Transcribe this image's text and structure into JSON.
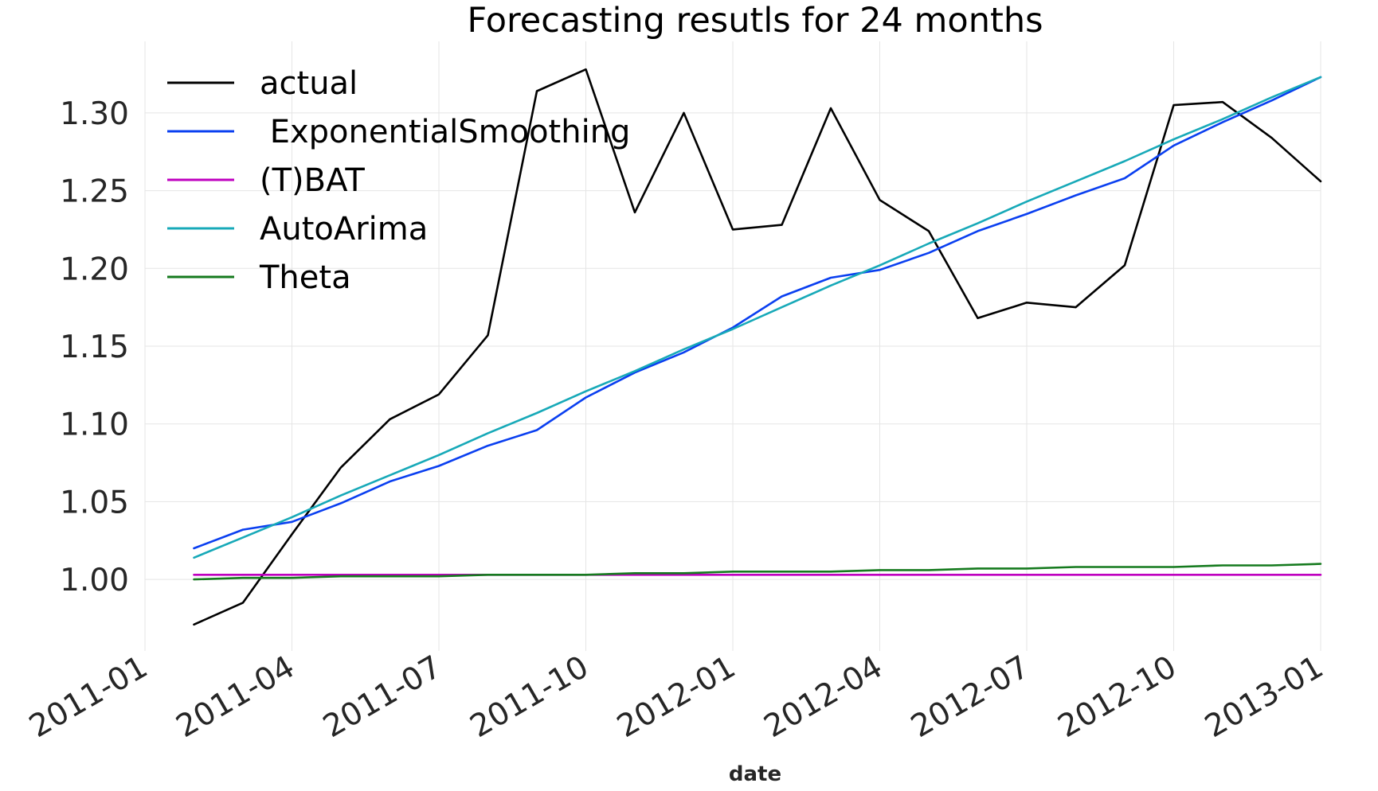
{
  "chart_data": {
    "type": "line",
    "title": "Forecasting resutls for 24 months",
    "xlabel": "date",
    "ylabel": "",
    "x_ticks": [
      "2011-01",
      "2011-04",
      "2011-07",
      "2011-10",
      "2012-01",
      "2012-04",
      "2012-07",
      "2012-10",
      "2013-01"
    ],
    "y_ticks": [
      "1.00",
      "1.05",
      "1.10",
      "1.15",
      "1.20",
      "1.25",
      "1.30"
    ],
    "xlim": [
      "2011-01",
      "2013-01"
    ],
    "ylim": [
      0.954,
      1.346
    ],
    "grid": true,
    "legend_position": "top-left",
    "x": [
      "2011-02",
      "2011-03",
      "2011-04",
      "2011-05",
      "2011-06",
      "2011-07",
      "2011-08",
      "2011-09",
      "2011-10",
      "2011-11",
      "2011-12",
      "2012-01",
      "2012-02",
      "2012-03",
      "2012-04",
      "2012-05",
      "2012-06",
      "2012-07",
      "2012-08",
      "2012-09",
      "2012-10",
      "2012-11",
      "2012-12",
      "2013-01"
    ],
    "series": [
      {
        "name": "actual",
        "color": "#000000",
        "values": [
          0.971,
          0.985,
          1.029,
          1.072,
          1.103,
          1.119,
          1.157,
          1.314,
          1.328,
          1.236,
          1.3,
          1.225,
          1.228,
          1.303,
          1.244,
          1.224,
          1.168,
          1.178,
          1.175,
          1.202,
          1.305,
          1.307,
          1.284,
          1.256
        ]
      },
      {
        "name": " ExponentialSmoothing",
        "color": "#0a3ff0",
        "values": [
          1.02,
          1.032,
          1.037,
          1.049,
          1.063,
          1.073,
          1.086,
          1.096,
          1.117,
          1.133,
          1.146,
          1.162,
          1.182,
          1.194,
          1.199,
          1.21,
          1.224,
          1.235,
          1.247,
          1.258,
          1.279,
          1.294,
          1.308,
          1.323
        ]
      },
      {
        "name": "(T)BAT",
        "color": "#bf00bf",
        "values": [
          1.003,
          1.003,
          1.003,
          1.003,
          1.003,
          1.003,
          1.003,
          1.003,
          1.003,
          1.003,
          1.003,
          1.003,
          1.003,
          1.003,
          1.003,
          1.003,
          1.003,
          1.003,
          1.003,
          1.003,
          1.003,
          1.003,
          1.003,
          1.003
        ]
      },
      {
        "name": "AutoArima",
        "color": "#17a9b8",
        "values": [
          1.014,
          1.027,
          1.04,
          1.054,
          1.067,
          1.08,
          1.094,
          1.107,
          1.121,
          1.134,
          1.148,
          1.161,
          1.175,
          1.189,
          1.202,
          1.216,
          1.229,
          1.243,
          1.256,
          1.269,
          1.283,
          1.296,
          1.31,
          1.323
        ]
      },
      {
        "name": "Theta",
        "color": "#157a1e",
        "values": [
          1.0,
          1.001,
          1.001,
          1.002,
          1.002,
          1.002,
          1.003,
          1.003,
          1.003,
          1.004,
          1.004,
          1.005,
          1.005,
          1.005,
          1.006,
          1.006,
          1.007,
          1.007,
          1.008,
          1.008,
          1.008,
          1.009,
          1.009,
          1.01
        ]
      }
    ]
  }
}
